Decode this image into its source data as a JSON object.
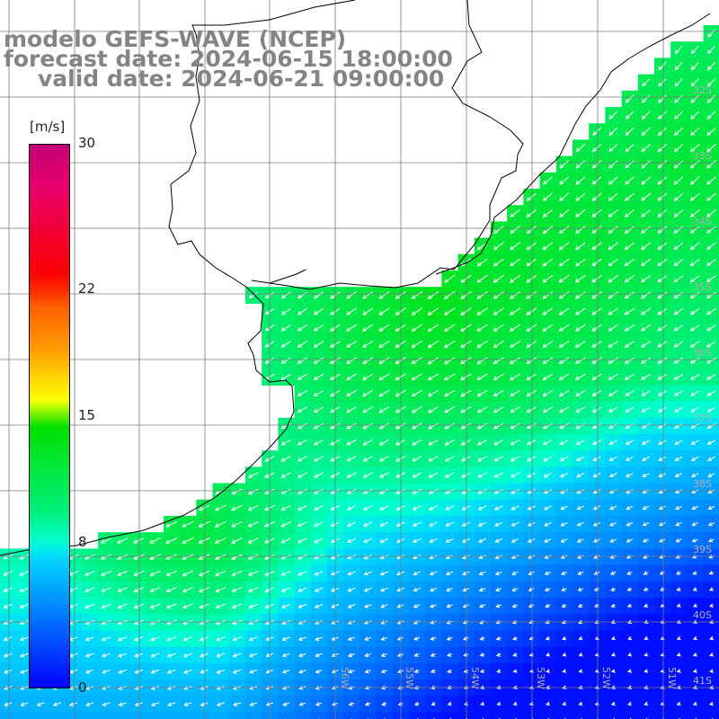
{
  "title": {
    "line1": "modelo GEFS-WAVE (NCEP)",
    "line2": "forecast date: 2024-06-15 18:00:00",
    "line3": "valid date: 2024-06-21 09:00:00"
  },
  "colorbar": {
    "unit": "[m/s]",
    "ticks": [
      "30",
      "22",
      "15",
      "8",
      "0"
    ],
    "tick_values": [
      30,
      22,
      15,
      8,
      0
    ],
    "range": [
      0,
      30
    ]
  },
  "map": {
    "lon_labels": [
      "56W",
      "55W",
      "54W",
      "53W",
      "52W",
      "51W"
    ],
    "lat_labels": [
      "32S",
      "33S",
      "34S",
      "35S",
      "36S",
      "37S",
      "38S",
      "39S",
      "40S",
      "41S"
    ],
    "land_color": "#ffffff",
    "grid_color": "#7a7a7a",
    "coast_color": "#000000",
    "arrow_color": "#ffffff"
  }
}
